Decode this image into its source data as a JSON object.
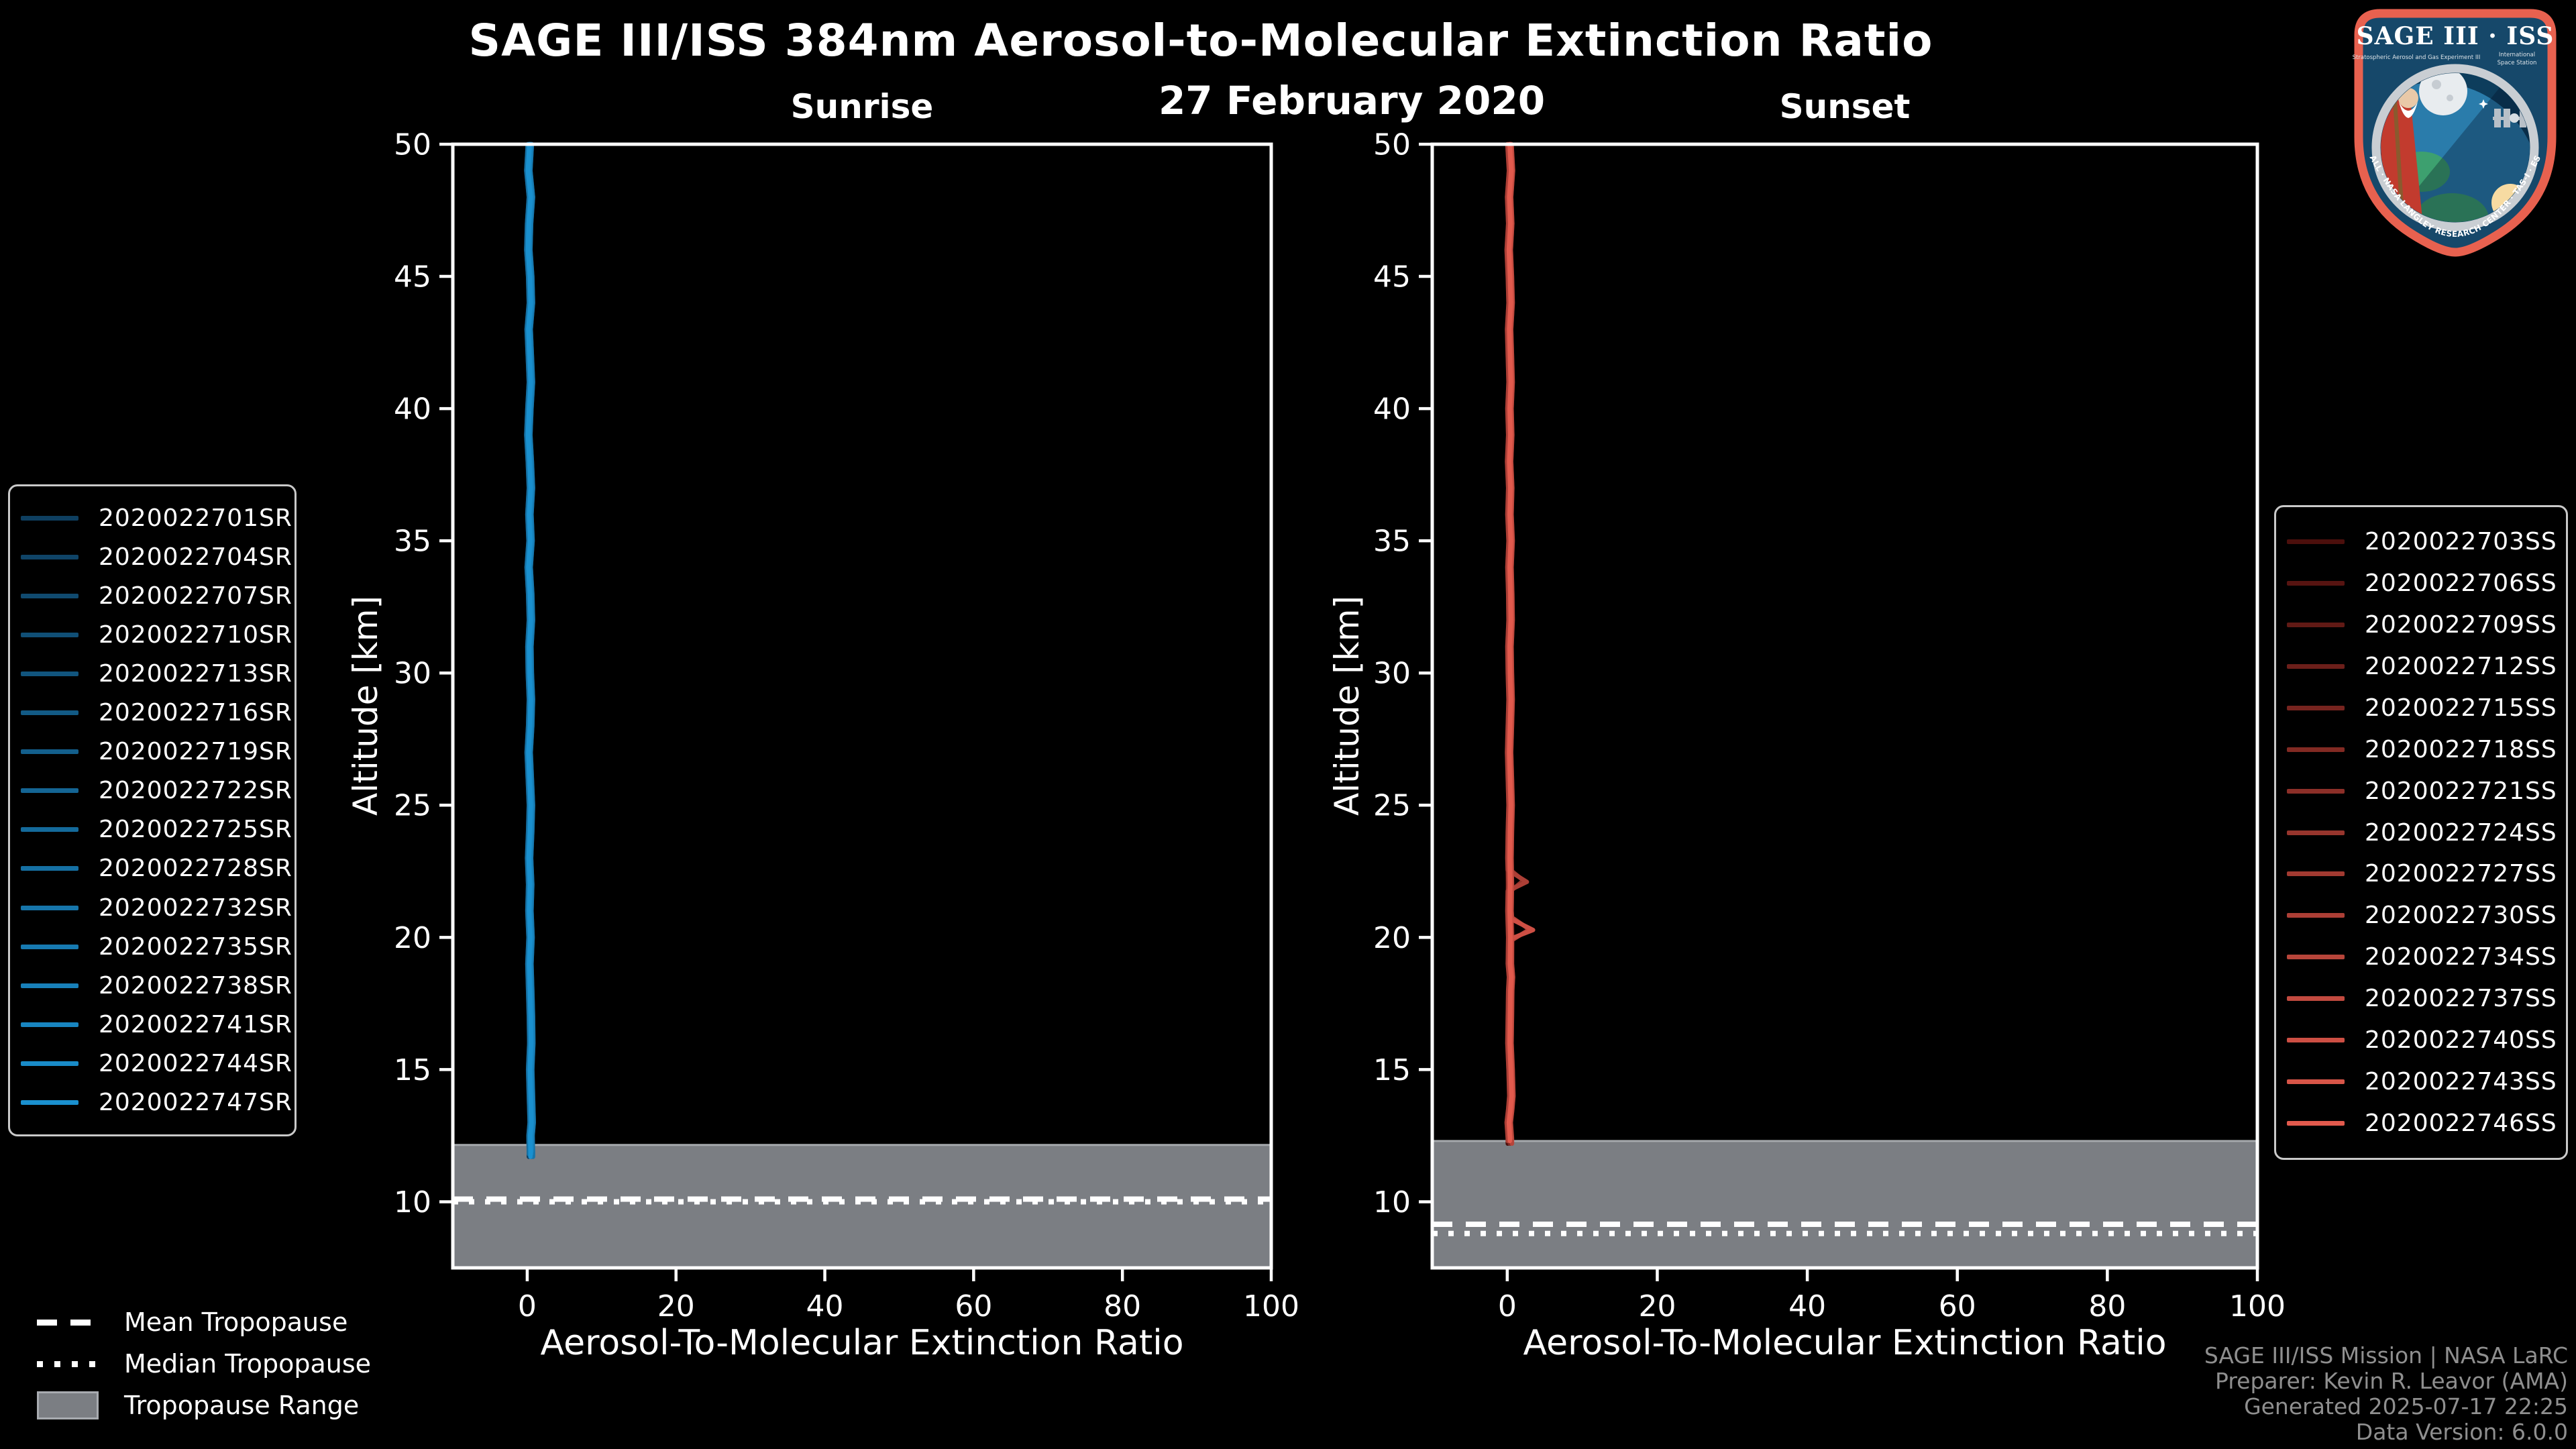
{
  "header": {
    "title": "SAGE III/ISS 384nm Aerosol-to-Molecular Extinction Ratio",
    "date": "27 February 2020"
  },
  "chart_data": [
    {
      "type": "line",
      "panel": "Sunrise",
      "xlabel": "Aerosol-To-Molecular Extinction Ratio",
      "ylabel": "Altitude [km]",
      "xlim": [
        -10,
        100
      ],
      "ylim": [
        7.5,
        50
      ],
      "x_ticks": [
        0,
        20,
        40,
        60,
        80,
        100
      ],
      "y_ticks": [
        10,
        15,
        20,
        25,
        30,
        35,
        40,
        45,
        50
      ],
      "grid": false,
      "series_names": [
        "2020022701SR",
        "2020022704SR",
        "2020022707SR",
        "2020022710SR",
        "2020022713SR",
        "2020022716SR",
        "2020022719SR",
        "2020022722SR",
        "2020022725SR",
        "2020022728SR",
        "2020022732SR",
        "2020022735SR",
        "2020022738SR",
        "2020022741SR",
        "2020022744SR",
        "2020022747SR"
      ],
      "series_color_start": "#0e3f60",
      "series_color_end": "#1a90cf",
      "base_profile": [
        [
          50,
          0.35
        ],
        [
          49,
          0.15
        ],
        [
          48,
          0.5
        ],
        [
          47,
          0.25
        ],
        [
          46,
          0.15
        ],
        [
          45,
          0.4
        ],
        [
          44,
          0.5
        ],
        [
          43,
          0.2
        ],
        [
          42,
          0.35
        ],
        [
          41,
          0.5
        ],
        [
          40,
          0.3
        ],
        [
          39,
          0.15
        ],
        [
          38,
          0.35
        ],
        [
          37,
          0.5
        ],
        [
          36,
          0.3
        ],
        [
          35,
          0.45
        ],
        [
          34,
          0.2
        ],
        [
          33,
          0.4
        ],
        [
          32,
          0.5
        ],
        [
          31,
          0.3
        ],
        [
          30,
          0.35
        ],
        [
          29,
          0.5
        ],
        [
          28,
          0.4
        ],
        [
          27,
          0.2
        ],
        [
          26,
          0.35
        ],
        [
          25,
          0.5
        ],
        [
          24,
          0.4
        ],
        [
          23,
          0.25
        ],
        [
          22,
          0.4
        ],
        [
          21,
          0.3
        ],
        [
          20,
          0.45
        ],
        [
          19,
          0.3
        ],
        [
          18,
          0.4
        ],
        [
          17,
          0.5
        ],
        [
          16,
          0.55
        ],
        [
          15,
          0.4
        ],
        [
          14,
          0.5
        ],
        [
          13,
          0.6
        ],
        [
          12.5,
          0.45
        ],
        [
          11.9,
          0.5
        ]
      ],
      "profile_end_altitude": 11.9,
      "bumps": [],
      "tropopause": {
        "mean": 10.1,
        "median": 10.0,
        "range_top": 12.15,
        "range_bottom": 7.5
      }
    },
    {
      "type": "line",
      "panel": "Sunset",
      "xlabel": "Aerosol-To-Molecular Extinction Ratio",
      "ylabel": "Altitude [km]",
      "xlim": [
        -10,
        100
      ],
      "ylim": [
        7.5,
        50
      ],
      "x_ticks": [
        0,
        20,
        40,
        60,
        80,
        100
      ],
      "y_ticks": [
        10,
        15,
        20,
        25,
        30,
        35,
        40,
        45,
        50
      ],
      "grid": false,
      "series_names": [
        "2020022703SS",
        "2020022706SS",
        "2020022709SS",
        "2020022712SS",
        "2020022715SS",
        "2020022718SS",
        "2020022721SS",
        "2020022724SS",
        "2020022727SS",
        "2020022730SS",
        "2020022734SS",
        "2020022737SS",
        "2020022740SS",
        "2020022743SS",
        "2020022746SS"
      ],
      "series_color_start": "#4c0f0c",
      "series_color_end": "#e25a4d",
      "base_profile": [
        [
          50,
          0.3
        ],
        [
          49,
          0.5
        ],
        [
          48,
          0.25
        ],
        [
          47,
          0.4
        ],
        [
          46,
          0.2
        ],
        [
          45,
          0.35
        ],
        [
          44,
          0.45
        ],
        [
          43,
          0.25
        ],
        [
          42,
          0.35
        ],
        [
          41,
          0.45
        ],
        [
          40,
          0.3
        ],
        [
          39,
          0.4
        ],
        [
          38,
          0.25
        ],
        [
          37,
          0.4
        ],
        [
          36,
          0.3
        ],
        [
          35,
          0.45
        ],
        [
          34,
          0.3
        ],
        [
          33,
          0.4
        ],
        [
          32,
          0.45
        ],
        [
          31,
          0.3
        ],
        [
          30,
          0.35
        ],
        [
          29,
          0.45
        ],
        [
          28,
          0.35
        ],
        [
          27,
          0.25
        ],
        [
          26,
          0.35
        ],
        [
          25,
          0.45
        ],
        [
          24,
          0.35
        ],
        [
          23,
          0.3
        ],
        [
          22,
          0.35
        ],
        [
          21,
          0.3
        ],
        [
          20,
          0.4
        ],
        [
          19,
          0.35
        ],
        [
          18.5,
          0.5
        ],
        [
          18,
          0.4
        ],
        [
          17,
          0.35
        ],
        [
          16,
          0.3
        ],
        [
          15,
          0.45
        ],
        [
          14,
          0.55
        ],
        [
          13.5,
          0.4
        ],
        [
          13,
          0.2
        ],
        [
          12.4,
          0.35
        ]
      ],
      "profile_end_altitude": 12.4,
      "bumps": [
        {
          "series": 7,
          "top": 22.6,
          "peak": 22.15,
          "bottom": 21.7,
          "value": 2.3
        },
        {
          "series": 9,
          "top": 22.55,
          "peak": 22.1,
          "bottom": 21.75,
          "value": 2.9
        },
        {
          "series": 10,
          "top": 20.75,
          "peak": 20.3,
          "bottom": 19.9,
          "value": 2.7
        },
        {
          "series": 12,
          "top": 20.7,
          "peak": 20.28,
          "bottom": 19.95,
          "value": 3.3
        }
      ],
      "tropopause": {
        "mean": 9.15,
        "median": 8.8,
        "range_top": 12.3,
        "range_bottom": 7.5
      }
    }
  ],
  "tropopause_legend": {
    "mean": "Mean Tropopause",
    "median": "Median Tropopause",
    "range": "Tropopause Range"
  },
  "footer": {
    "line1": "SAGE III/ISS Mission | NASA LaRC",
    "line2": "Preparer: Kevin R. Leavor (AMA)",
    "line3": "Generated 2025-07-17 22:25",
    "line4": "Data Version: 6.0.0"
  },
  "logo": {
    "title": "SAGE III · ISS",
    "subtitle_left": "Stratospheric Aerosol and Gas Experiment III",
    "subtitle_right_1": "International",
    "subtitle_right_2": "Space Station",
    "ring_text": "BALL · NASA LANGLEY RESEARCH CENTER · TAS-I · ESA"
  },
  "colors": {
    "background": "#000000",
    "frame": "#ffffff",
    "tick_label": "#ffffff",
    "band": "#7b7e83",
    "band_edge": "#a6a9ad",
    "tropopause_line": "#ffffff",
    "footer_text": "#8f8f8f"
  }
}
